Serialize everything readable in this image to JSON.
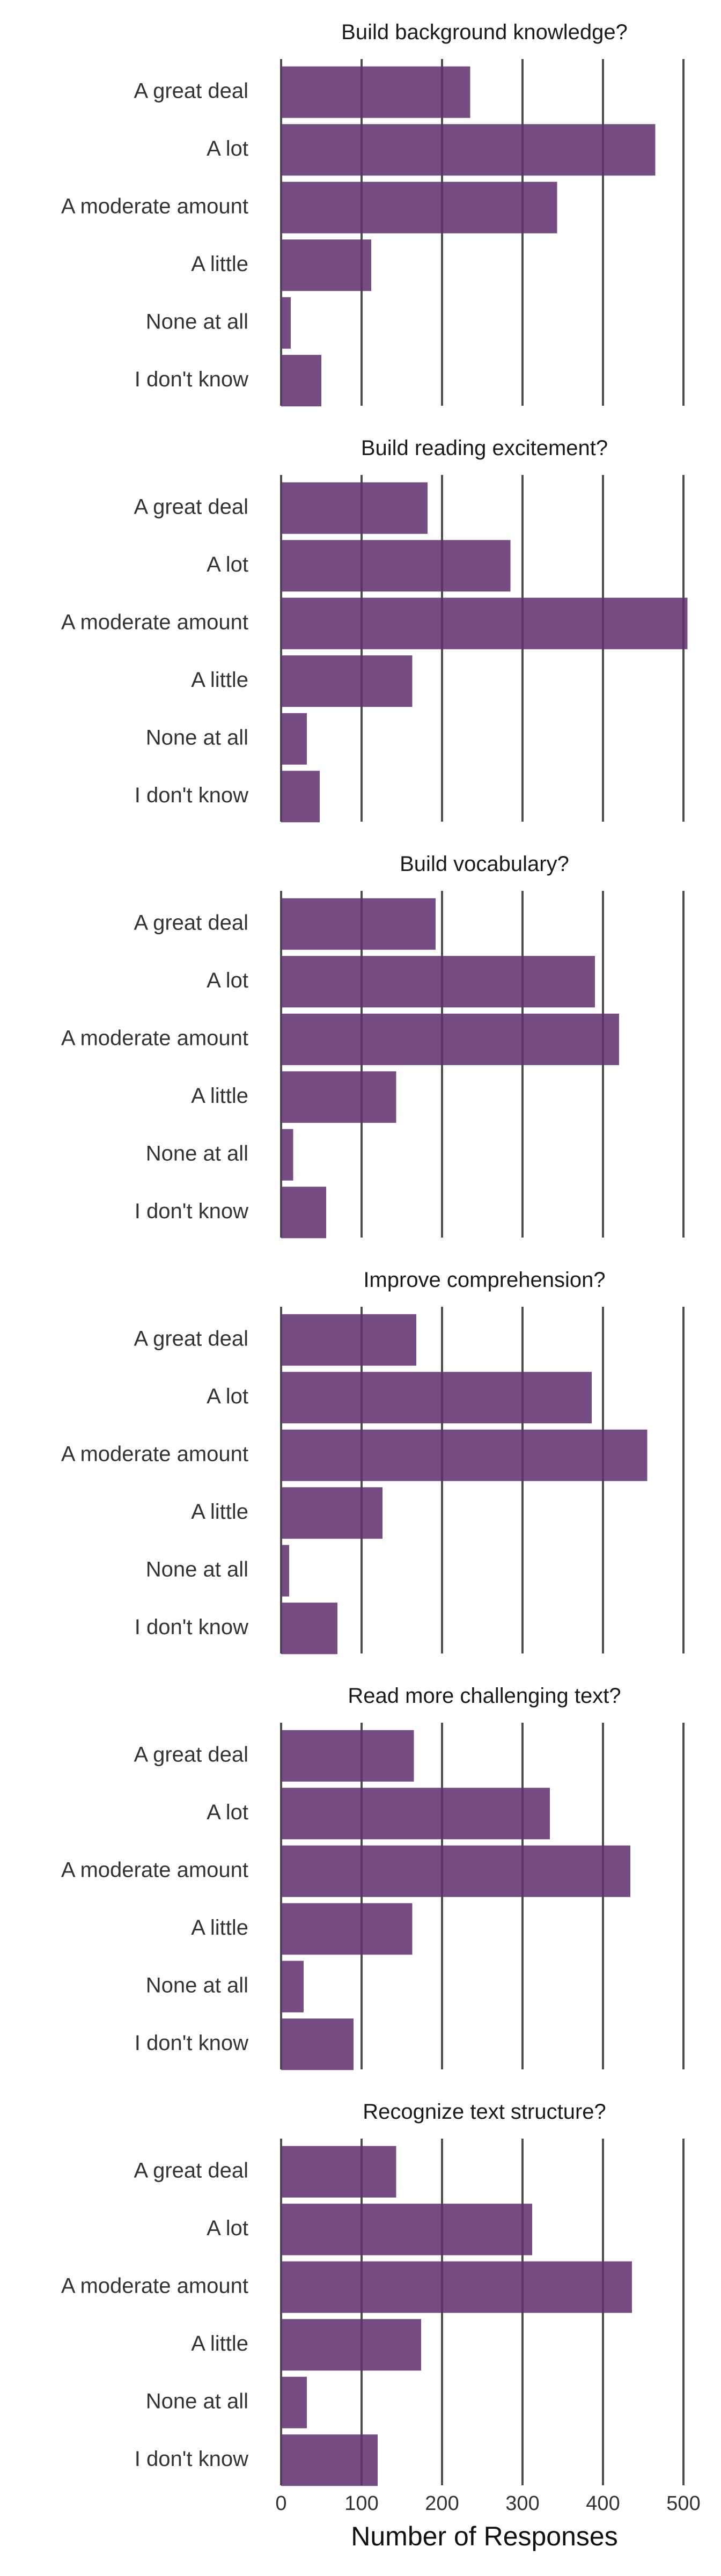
{
  "chart_data": {
    "type": "bar",
    "orientation": "horizontal",
    "facets": [
      {
        "title": "Build background knowledge?",
        "categories": [
          "A great deal",
          "A lot",
          "A moderate amount",
          "A little",
          "None at all",
          "I don't know"
        ],
        "values": [
          235,
          465,
          343,
          112,
          12,
          50
        ]
      },
      {
        "title": "Build reading excitement?",
        "categories": [
          "A great deal",
          "A lot",
          "A moderate amount",
          "A little",
          "None at all",
          "I don't know"
        ],
        "values": [
          182,
          285,
          505,
          163,
          32,
          48
        ]
      },
      {
        "title": "Build vocabulary?",
        "categories": [
          "A great deal",
          "A lot",
          "A moderate amount",
          "A little",
          "None at all",
          "I don't know"
        ],
        "values": [
          192,
          390,
          420,
          143,
          15,
          56
        ]
      },
      {
        "title": "Improve comprehension?",
        "categories": [
          "A great deal",
          "A lot",
          "A moderate amount",
          "A little",
          "None at all",
          "I don't know"
        ],
        "values": [
          168,
          386,
          455,
          126,
          10,
          70
        ]
      },
      {
        "title": "Read more challenging text?",
        "categories": [
          "A great deal",
          "A lot",
          "A moderate amount",
          "A little",
          "None at all",
          "I don't know"
        ],
        "values": [
          165,
          334,
          434,
          163,
          28,
          90
        ]
      },
      {
        "title": "Recognize text structure?",
        "categories": [
          "A great deal",
          "A lot",
          "A moderate amount",
          "A little",
          "None at all",
          "I don't know"
        ],
        "values": [
          143,
          312,
          436,
          174,
          32,
          120
        ]
      }
    ],
    "x_ticks": [
      "0",
      "100",
      "200",
      "300",
      "400",
      "500"
    ],
    "xlim": [
      0,
      520
    ],
    "xlabel": "Number of Responses",
    "ylabel": "",
    "grid": "vertical major lines",
    "legend": "none",
    "bar_color": "#5e306e"
  }
}
